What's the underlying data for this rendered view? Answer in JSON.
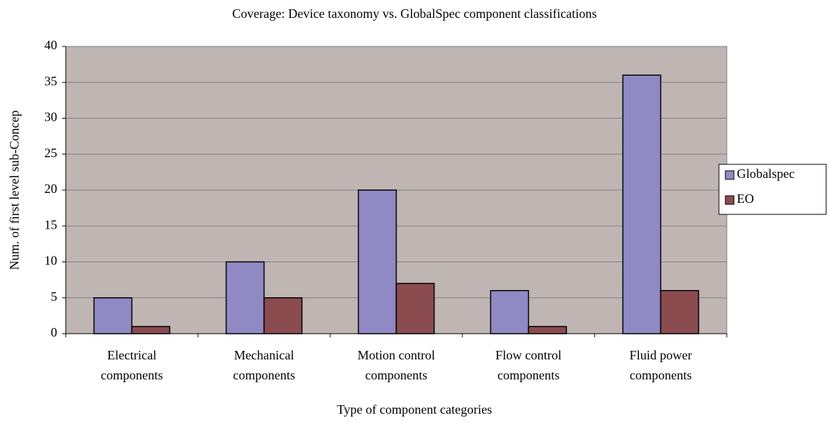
{
  "chart_data": {
    "type": "bar",
    "title": "Coverage: Device taxonomy vs. GlobalSpec component classifications",
    "x_label": "Type of component categories",
    "y_label": "Num. of first level sub-Concep",
    "categories": [
      "Electrical components",
      "Mechanical components",
      "Motion control components",
      "Flow control components",
      "Fluid power components"
    ],
    "series": [
      {
        "name": "Globalspec",
        "color": "#8f8ac4",
        "values": [
          5,
          10,
          20,
          6,
          36
        ]
      },
      {
        "name": "EO",
        "color": "#8b4c50",
        "values": [
          1,
          5,
          7,
          1,
          6
        ]
      }
    ],
    "ylim": [
      0,
      40
    ],
    "yticks": [
      0,
      5,
      10,
      15,
      20,
      25,
      30,
      35,
      40
    ],
    "grid": true,
    "legend": "right"
  }
}
